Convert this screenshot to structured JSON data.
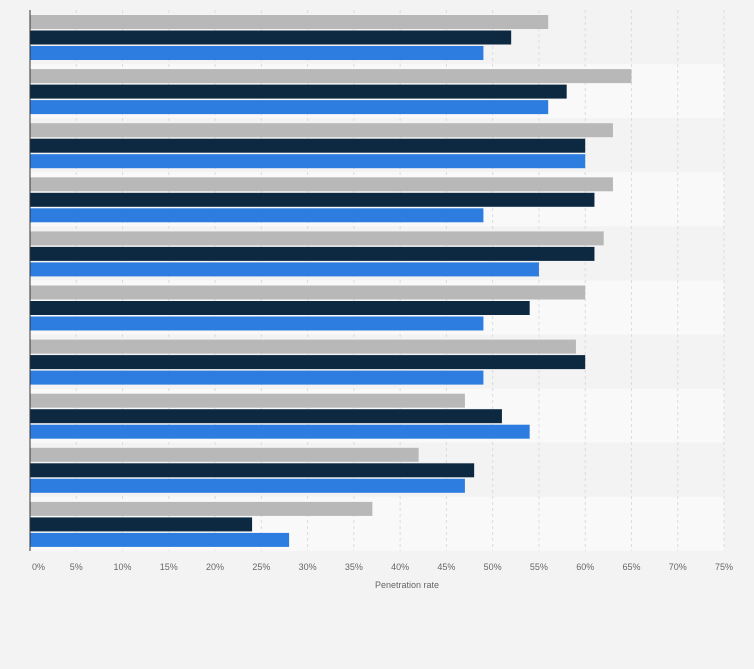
{
  "chart_data": {
    "type": "bar",
    "orientation": "horizontal",
    "xlabel": "Penetration rate",
    "xlim": [
      0,
      75
    ],
    "xticks": [
      "0%",
      "5%",
      "10%",
      "15%",
      "20%",
      "25%",
      "30%",
      "35%",
      "40%",
      "45%",
      "50%",
      "55%",
      "60%",
      "65%",
      "70%",
      "75%"
    ],
    "grid": true,
    "categories": [
      "",
      "",
      "",
      "",
      "",
      "",
      "",
      "",
      "",
      ""
    ],
    "series": [
      {
        "color": "#b8b8b8",
        "values": [
          56,
          65,
          63,
          63,
          62,
          60,
          59,
          47,
          42,
          37
        ]
      },
      {
        "color": "#0d2941",
        "values": [
          52,
          58,
          60,
          61,
          61,
          54,
          60,
          51,
          48,
          24
        ]
      },
      {
        "color": "#2d7de0",
        "values": [
          49,
          56,
          60,
          49,
          55,
          49,
          49,
          54,
          47,
          28
        ]
      }
    ]
  }
}
